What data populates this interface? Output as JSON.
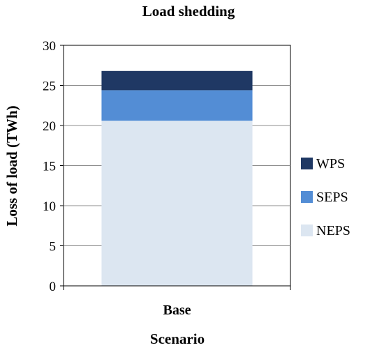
{
  "chart_data": {
    "type": "bar",
    "stacked": true,
    "title": "Load shedding",
    "xlabel": "Scenario",
    "ylabel": "Loss of load (TWh)",
    "categories": [
      "Base"
    ],
    "ylim": [
      0,
      30
    ],
    "yticks": [
      0,
      5,
      10,
      15,
      20,
      25,
      30
    ],
    "grid": true,
    "legend_position": "right",
    "series": [
      {
        "name": "NEPS",
        "values": [
          20.6
        ],
        "color": "#dce6f1"
      },
      {
        "name": "SEPS",
        "values": [
          3.8
        ],
        "color": "#538dd5"
      },
      {
        "name": "WPS",
        "values": [
          2.4
        ],
        "color": "#1f3864"
      }
    ]
  }
}
